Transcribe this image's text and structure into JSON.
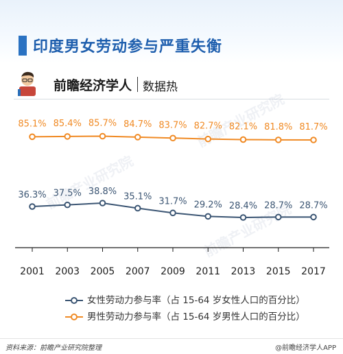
{
  "header": {
    "title": "印度男女劳动参与严重失衡"
  },
  "brand": {
    "name": "前瞻经济学人",
    "subtitle": "数据热",
    "avatar_icon": "economist-avatar-icon"
  },
  "watermark": "前瞻产业研究院",
  "colors": {
    "female": "#3b5573",
    "male": "#f08a24",
    "title": "#1f5fae",
    "axis": "#1a1a1a"
  },
  "chart_data": {
    "type": "line",
    "title": "印度男女劳动参与严重失衡",
    "xlabel": "",
    "ylabel": "",
    "categories": [
      "2001",
      "2003",
      "2005",
      "2007",
      "2009",
      "2011",
      "2013",
      "2015",
      "2017"
    ],
    "series": [
      {
        "name": "女性劳动力参与率（占 15-64 岁女性人口的百分比）",
        "values": [
          36.3,
          37.5,
          38.8,
          35.1,
          31.7,
          29.2,
          28.4,
          28.7,
          28.7
        ],
        "labels": [
          "36.3%",
          "37.5%",
          "38.8%",
          "35.1%",
          "31.7%",
          "29.2%",
          "28.4%",
          "28.7%",
          "28.7%"
        ],
        "color": "#3b5573"
      },
      {
        "name": "男性劳动力参与率（占 15-64 岁男性人口的百分比）",
        "values": [
          85.1,
          85.4,
          85.7,
          84.7,
          83.7,
          82.7,
          82.1,
          81.8,
          81.7
        ],
        "labels": [
          "85.1%",
          "85.4%",
          "85.7%",
          "84.7%",
          "83.7%",
          "82.7%",
          "82.1%",
          "81.8%",
          "81.7%"
        ],
        "color": "#f08a24"
      }
    ],
    "grid": false,
    "legend": "bottom"
  },
  "footer": {
    "source": "资料来源：前瞻产业研究院整理",
    "app": "@前瞻经济学人APP"
  }
}
